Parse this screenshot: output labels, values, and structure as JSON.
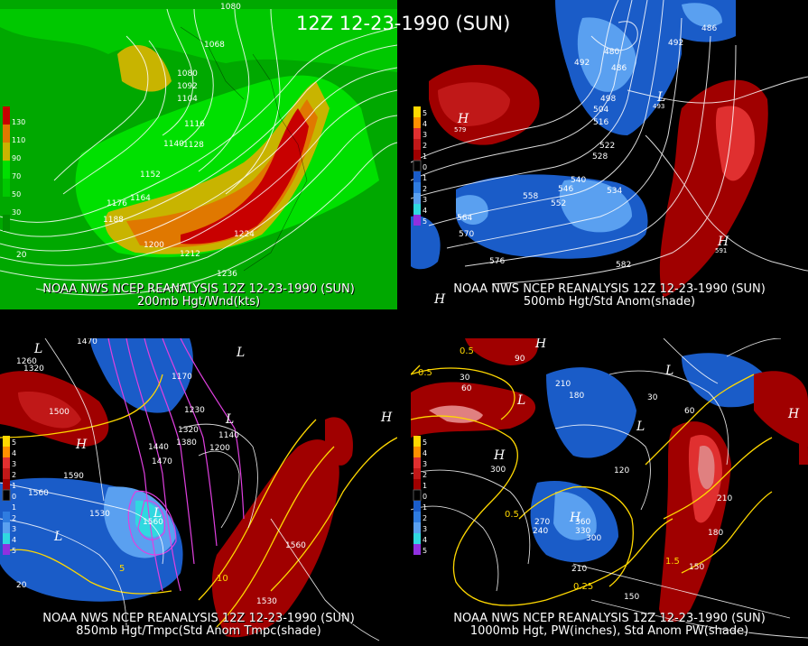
{
  "header": {
    "title": "12Z 12-23-1990 (SUN)"
  },
  "panels": [
    {
      "id": "p1",
      "caption_line1": "NOAA NWS NCEP REANALYSIS 12Z 12-23-1990 (SUN)",
      "caption_line2": "200mb Hgt/Wnd(kts)",
      "colorbar": [
        "130",
        "110",
        "90",
        "70",
        "50",
        "30"
      ],
      "contour_labels": [
        "1080",
        "1068",
        "1080",
        "1092",
        "1104",
        "1116",
        "1140",
        "1128",
        "1152",
        "1164",
        "1176",
        "1188",
        "1200",
        "1212",
        "1224",
        "1236",
        "20"
      ]
    },
    {
      "id": "p2",
      "caption_line1": "NOAA NWS NCEP REANALYSIS 12Z 12-23-1990 (SUN)",
      "caption_line2": "500mb Hgt/Std Anom(shade)",
      "colorbar": [
        "5",
        "4",
        "3",
        "2",
        "1",
        "0",
        "1",
        "2",
        "3",
        "4",
        "5"
      ],
      "contour_labels": [
        "486",
        "492",
        "480",
        "486",
        "492",
        "498",
        "504",
        "516",
        "522",
        "528",
        "534",
        "540",
        "546",
        "552",
        "558",
        "564",
        "570",
        "576",
        "582",
        "579",
        "591",
        "493"
      ]
    },
    {
      "id": "p3",
      "caption_line1": "NOAA NWS NCEP REANALYSIS 12Z 12-23-1990 (SUN)",
      "caption_line2": "850mb Hgt/Tmpc(Std Anom Tmpc(shade)",
      "colorbar": [
        "5",
        "4",
        "3",
        "2",
        "1",
        "0",
        "1",
        "2",
        "3",
        "4",
        "5"
      ],
      "contour_labels": [
        "1470",
        "1260",
        "1320",
        "1500",
        "1590",
        "1560",
        "1530",
        "1440",
        "1470",
        "1380",
        "1320",
        "1230",
        "1170",
        "1200",
        "1140",
        "1560",
        "1530",
        "1560",
        "10",
        "5",
        "20"
      ]
    },
    {
      "id": "p4",
      "caption_line1": "NOAA NWS NCEP REANALYSIS 12Z 12-23-1990 (SUN)",
      "caption_line2": "1000mb Hgt, PW(inches), Std Anom PW(shade)",
      "colorbar": [
        "5",
        "4",
        "3",
        "2",
        "1",
        "0",
        "1",
        "2",
        "3",
        "4",
        "5"
      ],
      "contour_labels": [
        "0.5",
        "0.5",
        "30",
        "60",
        "90",
        "210",
        "180",
        "120",
        "300",
        "270",
        "240",
        "360",
        "330",
        "300",
        "210",
        "150",
        "180",
        "210",
        "0.25",
        "0.5",
        "1.5",
        "150",
        "60",
        "30"
      ]
    }
  ],
  "colors": {
    "wind_30": "#00a800",
    "wind_50": "#00c800",
    "wind_70": "#00e000",
    "wind_90": "#c8b400",
    "wind_110": "#e07800",
    "wind_130": "#c80000",
    "anom_pos": "#a00000",
    "anom_pos2": "#e03030",
    "anom_neg": "#1a5cc8",
    "anom_neg2": "#5aa0f0",
    "yellow": "#ffd800",
    "magenta": "#e040e0"
  }
}
